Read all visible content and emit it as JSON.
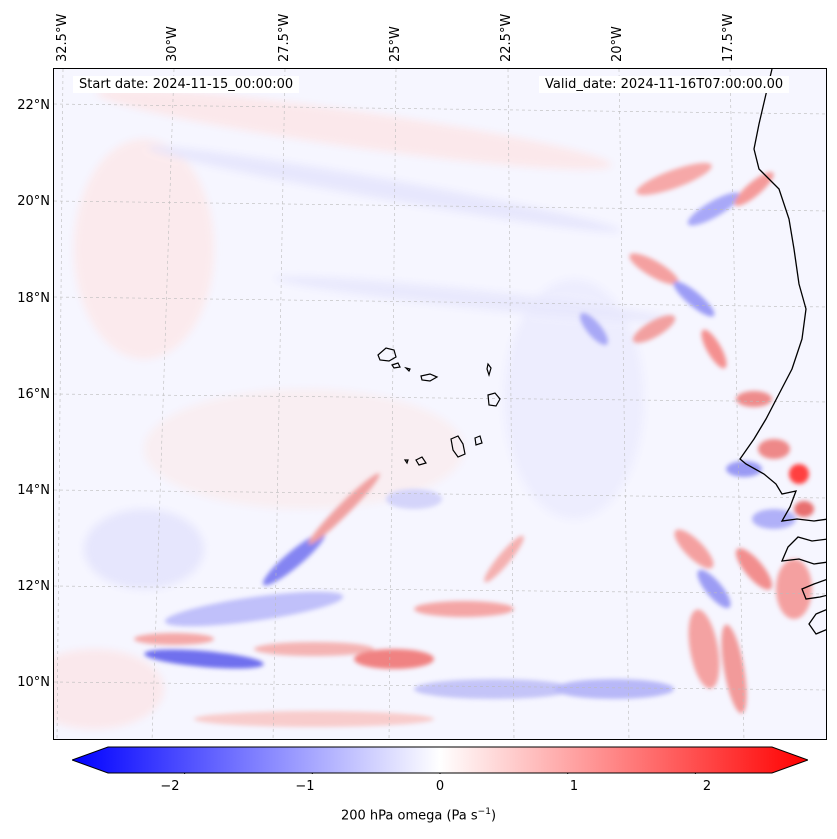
{
  "map": {
    "start_date": "Start date: 2024-11-15_00:00:00",
    "valid_date": "Valid_date: 2024-11-16T07:00:00.00",
    "lon_labels": [
      "32.5°W",
      "30°W",
      "27.5°W",
      "25°W",
      "22.5°W",
      "20°W",
      "17.5°W"
    ],
    "lat_labels": [
      "22°N",
      "20°N",
      "18°N",
      "16°N",
      "14°N",
      "12°N",
      "10°N"
    ]
  },
  "colorbar": {
    "ticks": [
      "−2",
      "−1",
      "0",
      "1",
      "2"
    ],
    "tick_values": [
      -2,
      -1,
      0,
      1,
      2
    ],
    "range": [
      -2.6,
      2.6
    ],
    "label_main": "200 hPa omega (Pa s",
    "label_sup": "−1",
    "label_end": ")",
    "colors": {
      "low": "#0000ff",
      "mid": "#ffffff",
      "high": "#ff0000"
    }
  }
}
